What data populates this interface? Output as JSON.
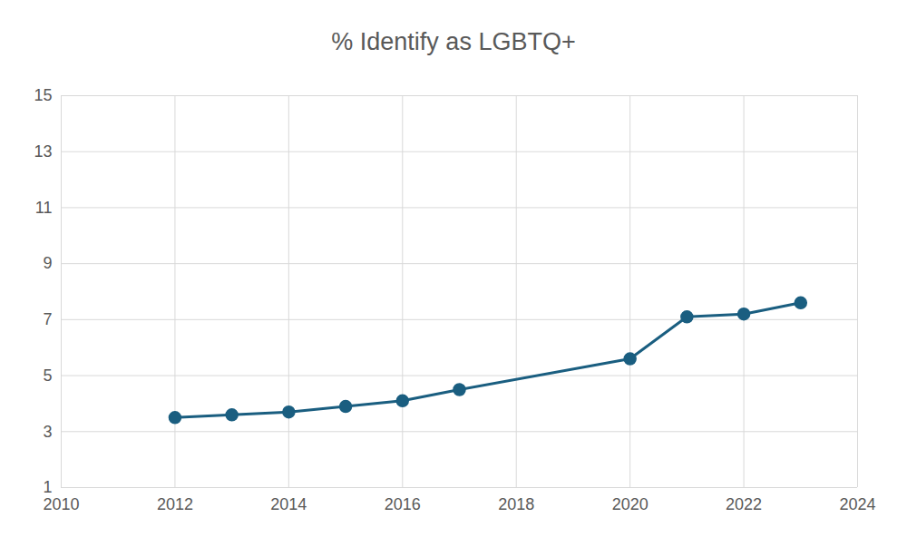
{
  "chart_data": {
    "type": "line",
    "title": "% Identify as LGBTQ+",
    "x": [
      2012,
      2013,
      2014,
      2015,
      2016,
      2017,
      2020,
      2021,
      2022,
      2023
    ],
    "values": [
      3.5,
      3.6,
      3.7,
      3.9,
      4.1,
      4.5,
      5.6,
      7.1,
      7.2,
      7.6
    ],
    "color": "#1a5e80",
    "marker": "circle",
    "xlim": [
      2010,
      2024
    ],
    "xticks": [
      2010,
      2012,
      2014,
      2016,
      2018,
      2020,
      2022,
      2024
    ],
    "ylim": [
      1,
      15
    ],
    "yticks": [
      1,
      3,
      5,
      7,
      9,
      11,
      13,
      15
    ],
    "grid": true
  }
}
